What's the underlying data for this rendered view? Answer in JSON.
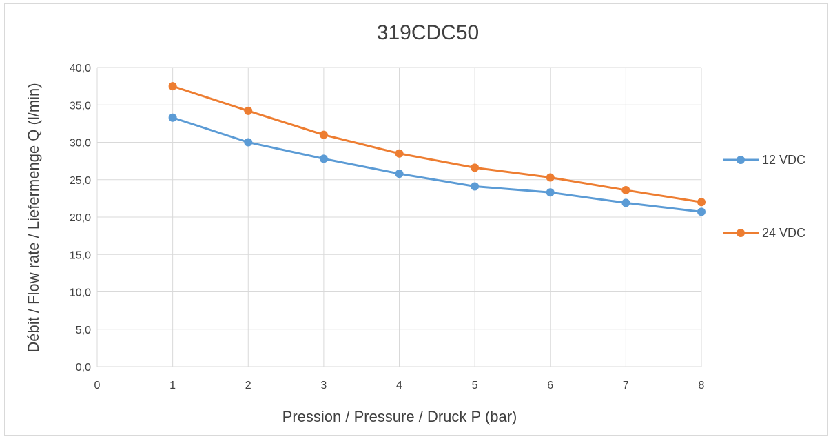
{
  "chart_data": {
    "type": "line",
    "title": "319CDC50",
    "xlabel": "Pression / Pressure / Druck P (bar)",
    "ylabel": "Débit / Flow rate / Liefermenge Q (l/min)",
    "x_ticks": [
      "0",
      "1",
      "2",
      "3",
      "4",
      "5",
      "6",
      "7",
      "8"
    ],
    "y_ticks": [
      "0,0",
      "5,0",
      "10,0",
      "15,0",
      "20,0",
      "25,0",
      "30,0",
      "35,0",
      "40,0"
    ],
    "xlim": [
      0,
      8
    ],
    "ylim": [
      0,
      40
    ],
    "grid": "vertical and horizontal",
    "legend_position": "right",
    "x": [
      1,
      2,
      3,
      4,
      5,
      6,
      7,
      8
    ],
    "series": [
      {
        "name": "12 VDC",
        "color": "#5b9bd5",
        "values": [
          33.3,
          30.0,
          27.8,
          25.8,
          24.1,
          23.3,
          21.9,
          20.7
        ]
      },
      {
        "name": "24 VDC",
        "color": "#ed7d31",
        "values": [
          37.5,
          34.2,
          31.0,
          28.5,
          26.6,
          25.3,
          23.6,
          22.0
        ]
      }
    ]
  }
}
